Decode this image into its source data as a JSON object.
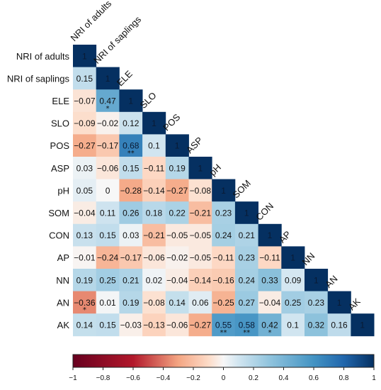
{
  "chart_data": {
    "type": "heatmap",
    "variables": [
      "NRI of adults",
      "NRI of saplings",
      "ELE",
      "SLO",
      "POS",
      "ASP",
      "pH",
      "SOM",
      "CON",
      "AP",
      "NN",
      "AN",
      "AK"
    ],
    "values": [
      [
        1
      ],
      [
        0.15,
        1
      ],
      [
        -0.07,
        0.47,
        1
      ],
      [
        -0.09,
        -0.02,
        0.12,
        1
      ],
      [
        -0.27,
        -0.17,
        0.68,
        0.1,
        1
      ],
      [
        0.03,
        -0.06,
        0.15,
        -0.11,
        0.19,
        1
      ],
      [
        0.05,
        0,
        -0.28,
        -0.14,
        -0.27,
        -0.08,
        1
      ],
      [
        -0.04,
        0.11,
        0.26,
        0.18,
        0.22,
        -0.21,
        0.23,
        1
      ],
      [
        0.13,
        0.15,
        0.03,
        -0.21,
        -0.05,
        -0.05,
        0.24,
        0.21,
        1
      ],
      [
        -0.01,
        -0.24,
        -0.17,
        -0.06,
        -0.02,
        -0.05,
        -0.11,
        0.23,
        -0.11,
        1
      ],
      [
        0.19,
        0.25,
        0.21,
        0.02,
        -0.04,
        -0.14,
        -0.16,
        0.24,
        0.33,
        0.09,
        1
      ],
      [
        -0.36,
        0.01,
        0.19,
        -0.08,
        0.14,
        0.06,
        -0.25,
        0.27,
        -0.04,
        0.25,
        0.23,
        1
      ],
      [
        0.14,
        0.15,
        -0.03,
        -0.13,
        -0.06,
        -0.27,
        0.55,
        0.58,
        0.42,
        0.1,
        0.32,
        0.16,
        1
      ]
    ],
    "labels": [
      [
        "1"
      ],
      [
        "0.15",
        "1"
      ],
      [
        "−0.07",
        "0.47",
        "1"
      ],
      [
        "−0.09",
        "−0.02",
        "0.12",
        "1"
      ],
      [
        "−0.27",
        "−0.17",
        "0.68",
        "0.1",
        "1"
      ],
      [
        "0.03",
        "−0.06",
        "0.15",
        "−0.11",
        "0.19",
        "1"
      ],
      [
        "0.05",
        "0",
        "−0.28",
        "−0.14",
        "−0.27",
        "−0.08",
        "1"
      ],
      [
        "−0.04",
        "0.11",
        "0.26",
        "0.18",
        "0.22",
        "−0.21",
        "0.23",
        "1"
      ],
      [
        "0.13",
        "0.15",
        "0.03",
        "−0.21",
        "−0.05",
        "−0.05",
        "0.24",
        "0.21",
        "1"
      ],
      [
        "−0.01",
        "−0.24",
        "−0.17",
        "−0.06",
        "−0.02",
        "−0.05",
        "−0.11",
        "0.23",
        "−0.11",
        "1"
      ],
      [
        "0.19",
        "0.25",
        "0.21",
        "0.02",
        "−0.04",
        "−0.14",
        "−0.16",
        "0.24",
        "0.33",
        "0.09",
        "1"
      ],
      [
        "−0.36",
        "0.01",
        "0.19",
        "−0.08",
        "0.14",
        "0.06",
        "−0.25",
        "0.27",
        "−0.04",
        "0.25",
        "0.23",
        "1"
      ],
      [
        "0.14",
        "0.15",
        "−0.03",
        "−0.13",
        "−0.06",
        "−0.27",
        "0.55",
        "0.58",
        "0.42",
        "0.1",
        "0.32",
        "0.16",
        "1"
      ]
    ],
    "significance": [
      {
        "row": 2,
        "col": 1,
        "mark": "*"
      },
      {
        "row": 4,
        "col": 2,
        "mark": "**"
      },
      {
        "row": 11,
        "col": 0,
        "mark": "*"
      },
      {
        "row": 12,
        "col": 6,
        "mark": "**"
      },
      {
        "row": 12,
        "col": 7,
        "mark": "**"
      },
      {
        "row": 12,
        "col": 8,
        "mark": "*"
      }
    ],
    "colorbar": {
      "range": [
        -1,
        1
      ],
      "ticks": [
        -1,
        -0.8,
        -0.6,
        -0.4,
        -0.2,
        0,
        0.2,
        0.4,
        0.6,
        0.8,
        1
      ],
      "tick_labels": [
        "−1",
        "−0.8",
        "−0.6",
        "−0.4",
        "−0.2",
        "0",
        "0.2",
        "0.4",
        "0.6",
        "0.8",
        "1"
      ],
      "colors": {
        "negative_strong": "#67001f",
        "negative_mid": "#f4a582",
        "neutral": "#f7f7f7",
        "positive_mid": "#92c5de",
        "positive_strong": "#053061"
      }
    },
    "legend": "bottom colorbar",
    "grid": false
  }
}
